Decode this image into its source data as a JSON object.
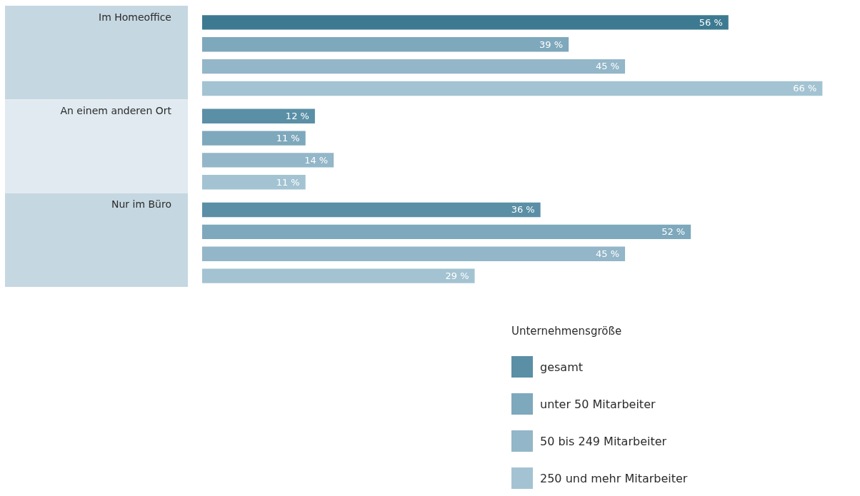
{
  "chart_data": {
    "type": "bar",
    "orientation": "horizontal",
    "categories": [
      "Im Homeoffice",
      "An einem anderen Ort",
      "Nur im Büro"
    ],
    "series": [
      {
        "name": "gesamt",
        "color": "#5a8fa6",
        "colors": [
          "#3d7a91",
          "#5a8fa6",
          "#5a8fa6"
        ],
        "values": [
          56,
          12,
          36
        ],
        "value_labels": [
          "56 %",
          "12 %",
          "36 %"
        ]
      },
      {
        "name": "unter 50 Mitarbeiter",
        "color": "#7ea8bc",
        "values": [
          39,
          11,
          52
        ],
        "value_labels": [
          "39 %",
          "11 %",
          "52 %"
        ]
      },
      {
        "name": "50 bis 249 Mitarbeiter",
        "color": "#93b6c8",
        "values": [
          45,
          14,
          45
        ],
        "value_labels": [
          "45 %",
          "14 %",
          "45 %"
        ]
      },
      {
        "name": "250 und mehr Mitarbeiter",
        "color": "#a3c3d2",
        "values": [
          66,
          11,
          29
        ],
        "value_labels": [
          "66 %",
          "11 %",
          "29 %"
        ]
      }
    ],
    "legend": "bottom",
    "legend_title": "Unternehmensgröße"
  }
}
